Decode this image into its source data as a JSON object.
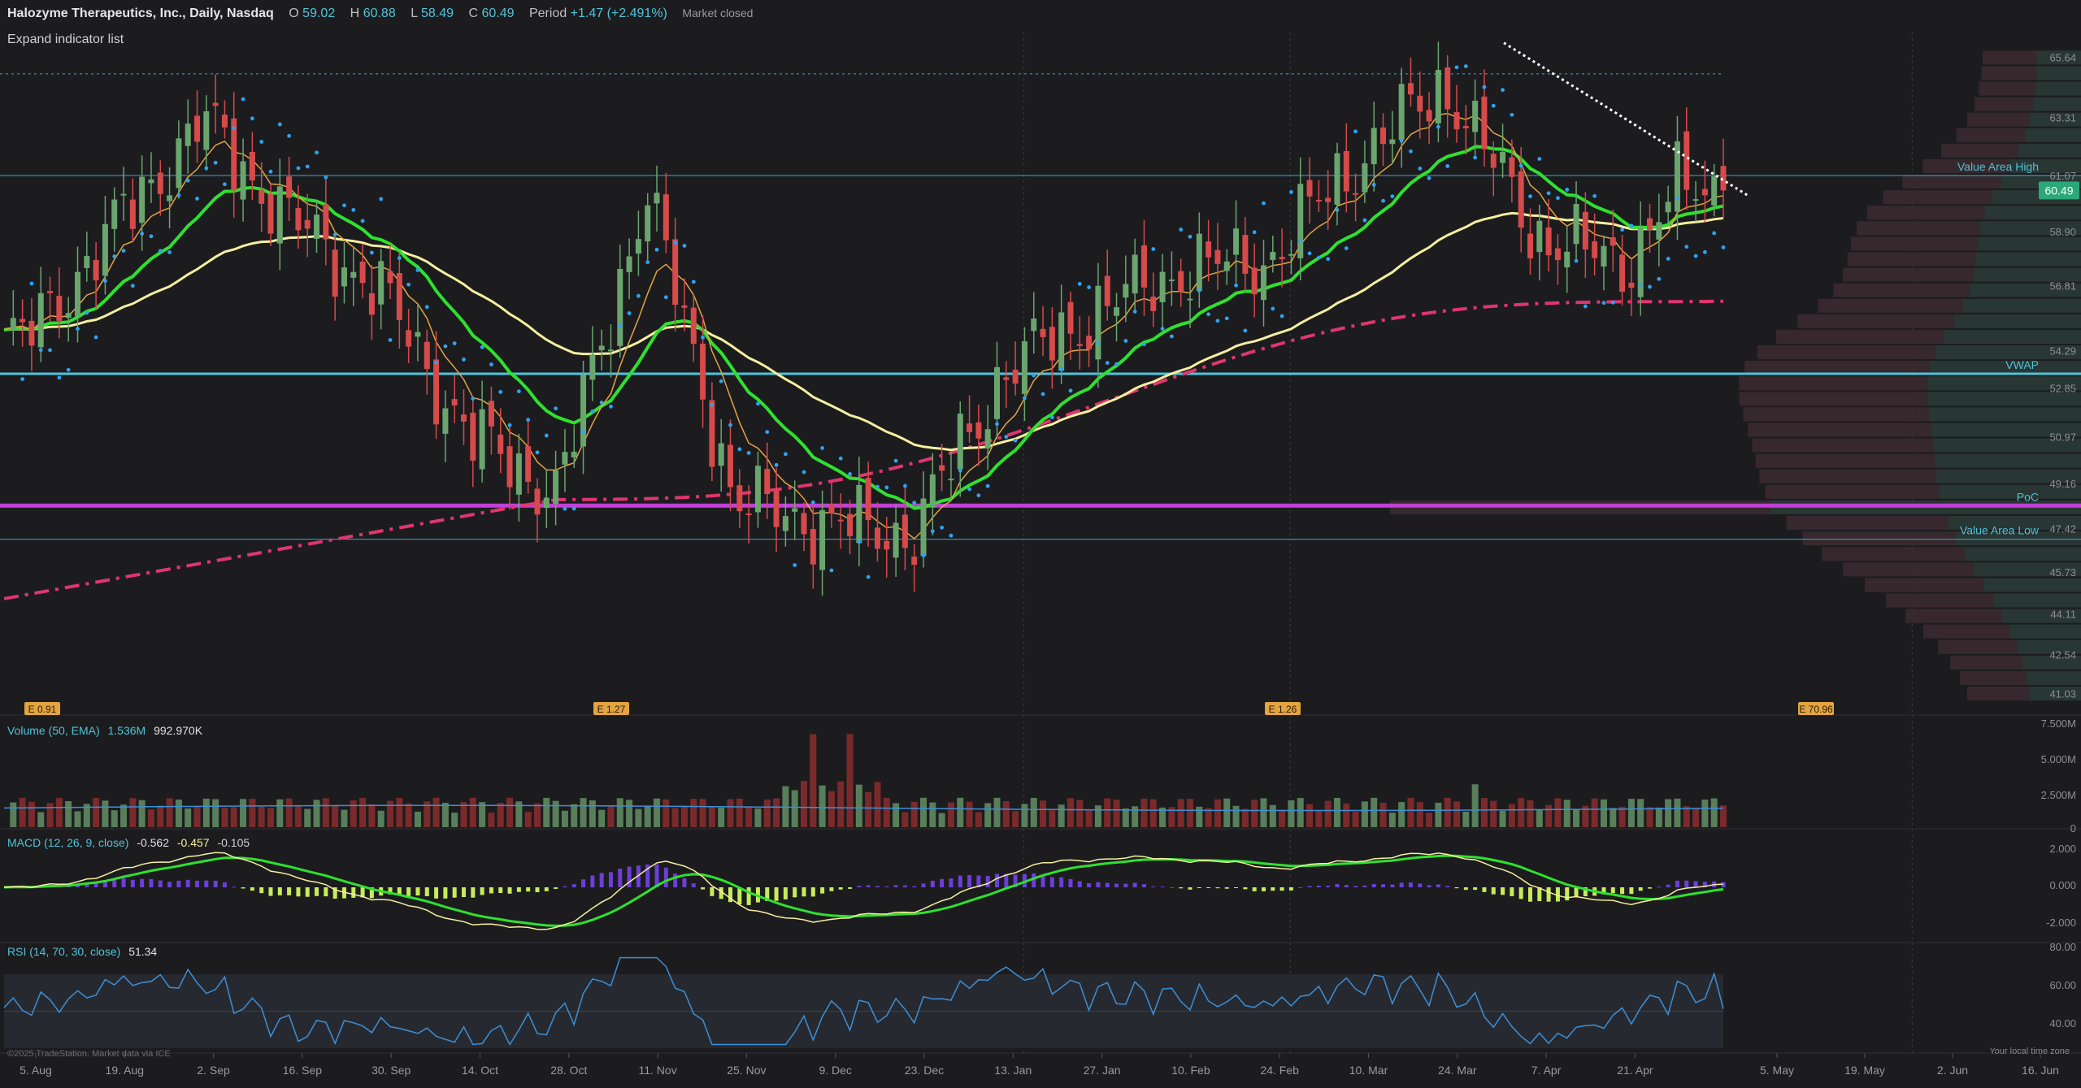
{
  "header": {
    "title": "Halozyme Therapeutics, Inc., Daily, Nasdaq",
    "open_label": "O",
    "open": "59.02",
    "high_label": "H",
    "high": "60.88",
    "low_label": "L",
    "low": "58.49",
    "close_label": "C",
    "close": "60.49",
    "period_label": "Period",
    "period": "+1.47 (+2.491%)",
    "status": "Market closed"
  },
  "expand_indicators": "Expand indicator list",
  "volume_panel": {
    "title": "Volume (50, EMA)",
    "v1": "1.536M",
    "v2": "992.970K"
  },
  "macd_panel": {
    "title": "MACD (12, 26, 9, close)",
    "v1": "-0.562",
    "v2": "-0.457",
    "v3": "-0.105"
  },
  "rsi_panel": {
    "title": "RSI (14, 70, 30, close)",
    "v1": "51.34"
  },
  "footer": "©2025 TradeStation. Market data via ICE",
  "timezone_label": "Your local time zone",
  "colors": {
    "up": "#6aa56e",
    "down": "#d64a4a",
    "green_ma": "#2fe02f",
    "yellow_ma": "#f5efa0",
    "orange_ma": "#e3a440",
    "vwap": "#4fc3d9",
    "poc": "#c23fd6",
    "trend200": "#e0356e",
    "psar": "#2fa3f0",
    "macd_pos": "#6b3fd8",
    "macd_neg": "#c7ec5a",
    "rsi": "#3d8fd8"
  },
  "chart_data": {
    "type": "candlestick",
    "title": "Halozyme Therapeutics, Inc., Daily, Nasdaq",
    "current_price": "60.49",
    "price_axis": [
      "65.64",
      "63.31",
      "61.07",
      "58.90",
      "56.81",
      "54.29",
      "52.85",
      "50.97",
      "49.16",
      "47.42",
      "45.73",
      "44.11",
      "42.54",
      "41.03"
    ],
    "date_axis": [
      "5. Aug",
      "19. Aug",
      "2. Sep",
      "16. Sep",
      "30. Sep",
      "14. Oct",
      "28. Oct",
      "11. Nov",
      "25. Nov",
      "9. Dec",
      "23. Dec",
      "13. Jan",
      "27. Jan",
      "10. Feb",
      "24. Feb",
      "10. Mar",
      "24. Mar",
      "7. Apr",
      "21. Apr",
      "5. May",
      "19. May",
      "2. Jun",
      "16. Jun"
    ],
    "levels": [
      {
        "name": "Value Area High",
        "value": 61.07
      },
      {
        "name": "VWAP",
        "value": 53.4
      },
      {
        "name": "PoC",
        "value": 48.3
      },
      {
        "name": "Value Area Low",
        "value": 47.0
      }
    ],
    "earnings": [
      "E 0.91",
      "E 1.27",
      "E 1.26",
      "E 70.96"
    ],
    "close_points": [
      [
        "5. Aug",
        54.7
      ],
      [
        "19. Aug",
        59.0
      ],
      [
        "2. Sep",
        63.2
      ],
      [
        "16. Sep",
        59.3
      ],
      [
        "30. Sep",
        56.6
      ],
      [
        "14. Oct",
        51.0
      ],
      [
        "28. Oct",
        48.8
      ],
      [
        "11. Nov",
        60.5
      ],
      [
        "25. Nov",
        48.4
      ],
      [
        "9. Dec",
        47.6
      ],
      [
        "23. Dec",
        47.2
      ],
      [
        "13. Jan",
        53.4
      ],
      [
        "27. Jan",
        55.7
      ],
      [
        "10. Feb",
        57.4
      ],
      [
        "24. Feb",
        57.8
      ],
      [
        "10. Mar",
        61.7
      ],
      [
        "24. Mar",
        64.6
      ],
      [
        "7. Apr",
        58.8
      ],
      [
        "21. Apr",
        57.6
      ],
      [
        "29. Apr",
        60.49
      ]
    ],
    "volume_axis": [
      "7.500M",
      "5.000M",
      "2.500M",
      "0"
    ],
    "macd_axis": [
      "2.000",
      "0.000",
      "-2.000"
    ],
    "rsi_axis": [
      "80.00",
      "60.00",
      "40.00"
    ],
    "volume_profile_axis_labels": [
      "Value Area High",
      "VWAP",
      "PoC",
      "Value Area Low"
    ]
  }
}
